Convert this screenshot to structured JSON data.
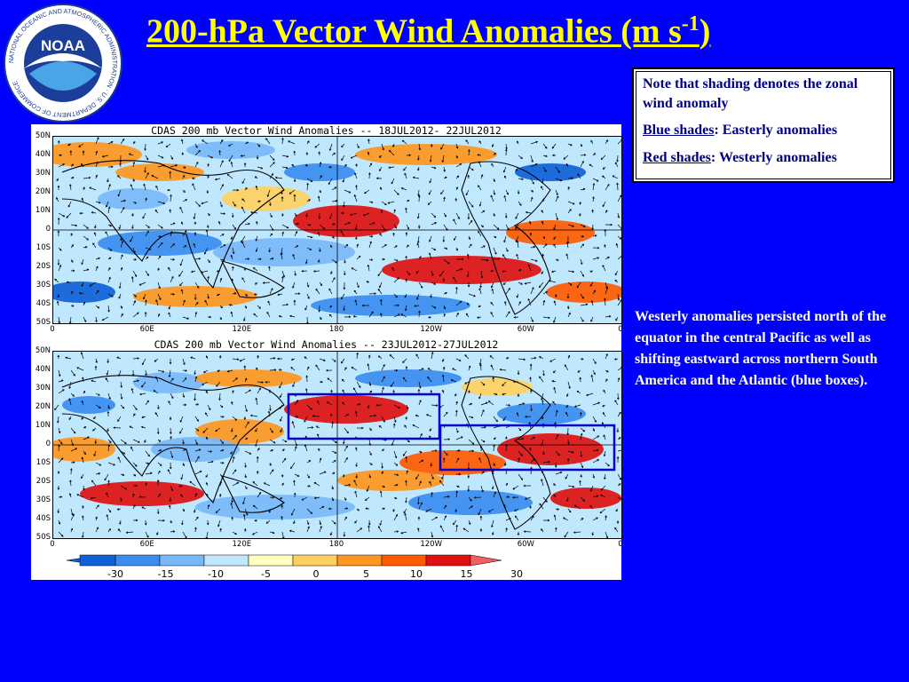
{
  "slide": {
    "title": "200-hPa Vector Wind Anomalies (m s",
    "title_sup": "-1",
    "title_close": ")"
  },
  "logo": {
    "text": "NOAA",
    "ring_text": "NATIONAL OCEANIC AND ATMOSPHERIC ADMINISTRATION · U.S. DEPARTMENT OF COMMERCE"
  },
  "note": {
    "line1": "Note that shading denotes the zonal wind anomaly",
    "blue_label": "Blue shades",
    "blue_text": ": Easterly anomalies",
    "red_label": "Red shades",
    "red_text": ": Westerly anomalies"
  },
  "description": "Westerly anomalies persisted north of the equator in the central Pacific as well as shifting eastward across northern South America and the Atlantic (blue boxes).",
  "panels": [
    {
      "title": "CDAS 200 mb Vector Wind Anomalies -- 18JUL2012- 22JUL2012"
    },
    {
      "title": "CDAS 200 mb Vector Wind Anomalies -- 23JUL2012-27JUL2012"
    }
  ],
  "lat_labels": [
    "50N",
    "40N",
    "30N",
    "20N",
    "10N",
    "0",
    "10S",
    "20S",
    "30S",
    "40S",
    "50S"
  ],
  "lon_labels": [
    "0",
    "60E",
    "120E",
    "180",
    "120W",
    "60W",
    "0"
  ],
  "colorbar": {
    "labels": [
      "-30",
      "-15",
      "-10",
      "-5",
      "0",
      "5",
      "10",
      "15",
      "30"
    ],
    "colors": [
      "#1060d8",
      "#3c8cf0",
      "#78b8f8",
      "#bfe8ff",
      "#ffffc0",
      "#ffd060",
      "#ff9620",
      "#ff5a00",
      "#e01010",
      "#f06060"
    ]
  },
  "colors": {
    "background": "#0000FF",
    "title": "#FFFF00",
    "note_text": "#000080",
    "box": "#0000CC"
  }
}
